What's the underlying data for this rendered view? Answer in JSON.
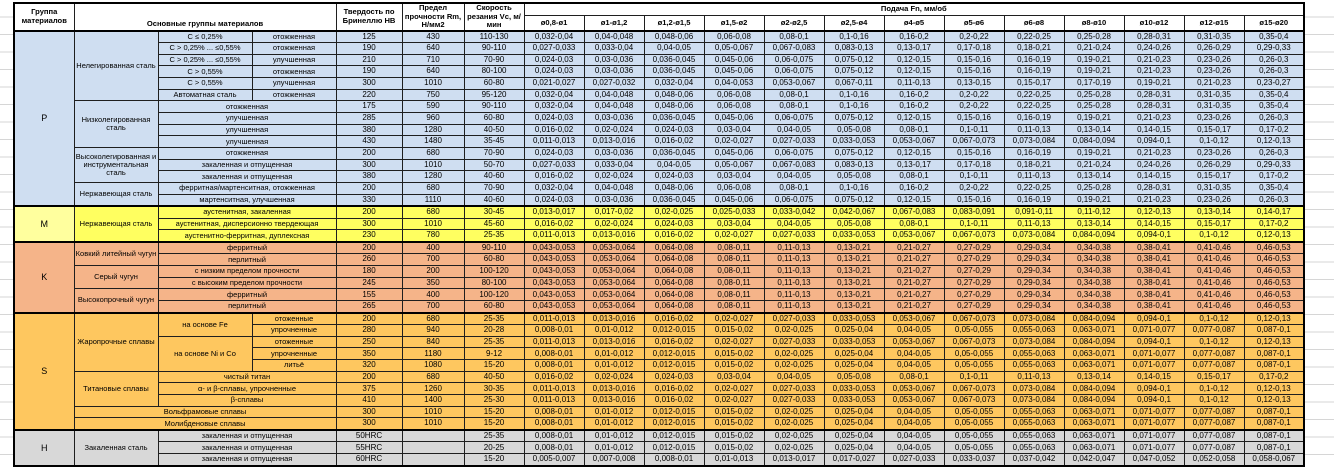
{
  "colors": {
    "group_P": "#cfdef1",
    "group_M": "#ffff60",
    "group_M_label": "#ffff9e",
    "group_K": "#f5b489",
    "group_S": "#fec75f",
    "group_H": "#d8d8d8",
    "border": "#1f1f1f"
  },
  "table": {
    "headers": {
      "group": "Группа материалов",
      "main": "Основные группы материалов",
      "hb": "Твердость по Бринеллю HB",
      "rm": "Предел прочности Rm, Н/мм2",
      "vc": "Скорость резания Vc, м/мин",
      "feed": "Подача Fn, мм/об"
    },
    "feed_cols": [
      "ø0,8-ø1",
      "ø1-ø1,2",
      "ø1,2-ø1,5",
      "ø1,5-ø2",
      "ø2-ø2,5",
      "ø2,5-ø4",
      "ø4-ø5",
      "ø5-ø6",
      "ø6-ø8",
      "ø8-ø10",
      "ø10-ø12",
      "ø12-ø15",
      "ø15-ø20"
    ],
    "feed_sets": {
      "F_A": [
        "0,032-0,04",
        "0,04-0,048",
        "0,048-0,06",
        "0,06-0,08",
        "0,08-0,1",
        "0,1-0,16",
        "0,16-0,2",
        "0,2-0,22",
        "0,22-0,25",
        "0,25-0,28",
        "0,28-0,31",
        "0,31-0,35",
        "0,35-0,4"
      ],
      "F_B": [
        "0,027-0,033",
        "0,033-0,04",
        "0,04-0,05",
        "0,05-0,067",
        "0,067-0,083",
        "0,083-0,13",
        "0,13-0,17",
        "0,17-0,18",
        "0,18-0,21",
        "0,21-0,24",
        "0,24-0,26",
        "0,26-0,29",
        "0,29-0,33"
      ],
      "F_C": [
        "0,024-0,03",
        "0,03-0,036",
        "0,036-0,045",
        "0,045-0,06",
        "0,06-0,075",
        "0,075-0,12",
        "0,12-0,15",
        "0,15-0,16",
        "0,16-0,19",
        "0,19-0,21",
        "0,21-0,23",
        "0,23-0,26",
        "0,26-0,3"
      ],
      "F_D": [
        "0,021-0,027",
        "0,027-0,032",
        "0,032-0,04",
        "0,04-0,053",
        "0,053-0,067",
        "0,067-0,11",
        "0,11-0,13",
        "0,13-0,15",
        "0,15-0,17",
        "0,17-0,19",
        "0,19-0,21",
        "0,21-0,23",
        "0,23-0,27"
      ],
      "F_E": [
        "0,016-0,02",
        "0,02-0,024",
        "0,024-0,03",
        "0,03-0,04",
        "0,04-0,05",
        "0,05-0,08",
        "0,08-0,1",
        "0,1-0,11",
        "0,11-0,13",
        "0,13-0,14",
        "0,14-0,15",
        "0,15-0,17",
        "0,17-0,2"
      ],
      "F_F": [
        "0,011-0,013",
        "0,013-0,016",
        "0,016-0,02",
        "0,02-0,027",
        "0,027-0,033",
        "0,033-0,053",
        "0,053-0,067",
        "0,067-0,073",
        "0,073-0,084",
        "0,084-0,094",
        "0,094-0,1",
        "0,1-0,12",
        "0,12-0,13"
      ],
      "F_G": [
        "0,013-0,017",
        "0,017-0,02",
        "0,02-0,025",
        "0,025-0,033",
        "0,033-0,042",
        "0,042-0,067",
        "0,067-0,083",
        "0,083-0,091",
        "0,091-0,11",
        "0,11-0,12",
        "0,12-0,13",
        "0,13-0,14",
        "0,14-0,17"
      ],
      "F_K": [
        "0,043-0,053",
        "0,053-0,064",
        "0,064-0,08",
        "0,08-0,11",
        "0,11-0,13",
        "0,13-0,21",
        "0,21-0,27",
        "0,27-0,29",
        "0,29-0,34",
        "0,34-0,38",
        "0,38-0,41",
        "0,41-0,46",
        "0,46-0,53"
      ],
      "F_H": [
        "0,008-0,01",
        "0,01-0,012",
        "0,012-0,015",
        "0,015-0,02",
        "0,02-0,025",
        "0,025-0,04",
        "0,04-0,05",
        "0,05-0,055",
        "0,055-0,063",
        "0,063-0,071",
        "0,071-0,077",
        "0,077-0,087",
        "0,087-0,1"
      ],
      "F_I": [
        "0,005-0,007",
        "0,007-0,008",
        "0,008-0,01",
        "0,01-0,013",
        "0,013-0,017",
        "0,017-0,027",
        "0,027-0,033",
        "0,033-0,037",
        "0,037-0,042",
        "0,042-0,047",
        "0,047-0,052",
        "0,052-0,058",
        "0,058-0,067"
      ]
    },
    "groups": [
      {
        "label": "P",
        "css": "gP",
        "label_css": "gP",
        "rows": [
          {
            "cells": [
              {
                "t": "Нелегированная сталь",
                "rs": 6
              },
              {
                "t": "C ≤ 0,25%"
              },
              {
                "t": "отожженная"
              }
            ],
            "hb": "125",
            "rm": "430",
            "vc": "110-130",
            "feeds": "F_A"
          },
          {
            "cells": [
              {
                "t": "C > 0,25% ... ≤0,55%"
              },
              {
                "t": "отожженная"
              }
            ],
            "hb": "190",
            "rm": "640",
            "vc": "90-110",
            "feeds": "F_B"
          },
          {
            "cells": [
              {
                "t": "C > 0,25% ... ≤0,55%"
              },
              {
                "t": "улучшенная"
              }
            ],
            "hb": "210",
            "rm": "710",
            "vc": "70-90",
            "feeds": "F_C"
          },
          {
            "cells": [
              {
                "t": "C > 0,55%"
              },
              {
                "t": "отожженная"
              }
            ],
            "hb": "190",
            "rm": "640",
            "vc": "80-100",
            "feeds": "F_C"
          },
          {
            "cells": [
              {
                "t": "C > 0,55%"
              },
              {
                "t": "улучшенная"
              }
            ],
            "hb": "300",
            "rm": "1010",
            "vc": "60-80",
            "feeds": "F_D"
          },
          {
            "cells": [
              {
                "t": "Автоматная сталь"
              },
              {
                "t": "отожженная"
              }
            ],
            "hb": "220",
            "rm": "750",
            "vc": "95-120",
            "feeds": "F_A"
          },
          {
            "cells": [
              {
                "t": "Низколегированная сталь",
                "rs": 4
              },
              {
                "t": "отожженная",
                "cs": 2
              }
            ],
            "hb": "175",
            "rm": "590",
            "vc": "90-110",
            "feeds": "F_A"
          },
          {
            "cells": [
              {
                "t": "улучшенная",
                "cs": 2
              }
            ],
            "hb": "285",
            "rm": "960",
            "vc": "60-80",
            "feeds": "F_C"
          },
          {
            "cells": [
              {
                "t": "улучшенная",
                "cs": 2
              }
            ],
            "hb": "380",
            "rm": "1280",
            "vc": "40-50",
            "feeds": "F_E"
          },
          {
            "cells": [
              {
                "t": "улучшенная",
                "cs": 2
              }
            ],
            "hb": "430",
            "rm": "1480",
            "vc": "35-45",
            "feeds": "F_F"
          },
          {
            "cells": [
              {
                "t": "Высоколегированная и инструментальная сталь",
                "rs": 3
              },
              {
                "t": "отожженная",
                "cs": 2
              }
            ],
            "hb": "200",
            "rm": "680",
            "vc": "70-90",
            "feeds": "F_C"
          },
          {
            "cells": [
              {
                "t": "закаленная и отпущенная",
                "cs": 2
              }
            ],
            "hb": "300",
            "rm": "1010",
            "vc": "50-70",
            "feeds": "F_B"
          },
          {
            "cells": [
              {
                "t": "закаленная и отпущенная",
                "cs": 2
              }
            ],
            "hb": "380",
            "rm": "1280",
            "vc": "40-60",
            "feeds": "F_E"
          },
          {
            "cells": [
              {
                "t": "Нержавеющая сталь",
                "rs": 2
              },
              {
                "t": "ферритная/мартенситная, отожженная",
                "cs": 2
              }
            ],
            "hb": "200",
            "rm": "680",
            "vc": "70-90",
            "feeds": "F_A"
          },
          {
            "cells": [
              {
                "t": "мартенситная, улучшенная",
                "cs": 2
              }
            ],
            "hb": "330",
            "rm": "1110",
            "vc": "40-60",
            "feeds": "F_C"
          }
        ]
      },
      {
        "label": "M",
        "css": "gM",
        "label_css": "gM-label",
        "rows": [
          {
            "cells": [
              {
                "t": "Нержавеющая сталь",
                "rs": 3
              },
              {
                "t": "аустенитная, закаленная",
                "cs": 2
              }
            ],
            "hb": "200",
            "rm": "680",
            "vc": "30-45",
            "feeds": "F_G"
          },
          {
            "cells": [
              {
                "t": "аустенитная, дисперсионно твердеющая",
                "cs": 2
              }
            ],
            "hb": "300",
            "rm": "1010",
            "vc": "45-60",
            "feeds": "F_E"
          },
          {
            "cells": [
              {
                "t": "аустенитно-ферритная, дуплексная",
                "cs": 2
              }
            ],
            "hb": "230",
            "rm": "780",
            "vc": "25-35",
            "feeds": "F_F"
          }
        ]
      },
      {
        "label": "K",
        "css": "gK",
        "label_css": "gK",
        "rows": [
          {
            "cells": [
              {
                "t": "Ковкий литейный чугун",
                "rs": 2
              },
              {
                "t": "ферритный",
                "cs": 2
              }
            ],
            "hb": "200",
            "rm": "400",
            "vc": "90-110",
            "feeds": "F_K"
          },
          {
            "cells": [
              {
                "t": "перлитный",
                "cs": 2
              }
            ],
            "hb": "260",
            "rm": "700",
            "vc": "60-80",
            "feeds": "F_K"
          },
          {
            "cells": [
              {
                "t": "Серый чугун",
                "rs": 2
              },
              {
                "t": "с низким пределом прочности",
                "cs": 2
              }
            ],
            "hb": "180",
            "rm": "200",
            "vc": "100-120",
            "feeds": "F_K"
          },
          {
            "cells": [
              {
                "t": "с высоким пределом прочности",
                "cs": 2
              }
            ],
            "hb": "245",
            "rm": "350",
            "vc": "80-100",
            "feeds": "F_K"
          },
          {
            "cells": [
              {
                "t": "Высокопрочный чугун",
                "rs": 2
              },
              {
                "t": "ферритный",
                "cs": 2
              }
            ],
            "hb": "155",
            "rm": "400",
            "vc": "100-120",
            "feeds": "F_K"
          },
          {
            "cells": [
              {
                "t": "перлитный",
                "cs": 2
              }
            ],
            "hb": "265",
            "rm": "700",
            "vc": "60-80",
            "feeds": "F_K"
          }
        ]
      },
      {
        "label": "S",
        "css": "gS",
        "label_css": "gS",
        "rows": [
          {
            "cells": [
              {
                "t": "Жаропрочные сплавы",
                "rs": 5
              },
              {
                "t": "на основе Fe",
                "rs": 2
              },
              {
                "t": "отоженные"
              }
            ],
            "hb": "200",
            "rm": "680",
            "vc": "25-35",
            "feeds": "F_F"
          },
          {
            "cells": [
              {
                "t": "упрочненные"
              }
            ],
            "hb": "280",
            "rm": "940",
            "vc": "20-28",
            "feeds": "F_H"
          },
          {
            "cells": [
              {
                "t": "на основе Ni и Co",
                "rs": 3
              },
              {
                "t": "отоженные"
              }
            ],
            "hb": "250",
            "rm": "840",
            "vc": "25-35",
            "feeds": "F_F"
          },
          {
            "cells": [
              {
                "t": "упрочненные"
              }
            ],
            "hb": "350",
            "rm": "1180",
            "vc": "9-12",
            "feeds": "F_H"
          },
          {
            "cells": [
              {
                "t": "литьё"
              }
            ],
            "hb": "320",
            "rm": "1080",
            "vc": "15-20",
            "feeds": "F_H"
          },
          {
            "cells": [
              {
                "t": "Титановые сплавы",
                "rs": 3
              },
              {
                "t": "чистый титан",
                "cs": 2
              }
            ],
            "hb": "200",
            "rm": "680",
            "vc": "40-50",
            "feeds": "F_E"
          },
          {
            "cells": [
              {
                "t": "α- и β-сплавы, упрочненные",
                "cs": 2
              }
            ],
            "hb": "375",
            "rm": "1260",
            "vc": "30-35",
            "feeds": "F_F"
          },
          {
            "cells": [
              {
                "t": "β-сплавы",
                "cs": 2
              }
            ],
            "hb": "410",
            "rm": "1400",
            "vc": "25-30",
            "feeds": "F_F"
          },
          {
            "cells": [
              {
                "t": "Вольфрамовые сплавы",
                "cs": 3
              }
            ],
            "hb": "300",
            "rm": "1010",
            "vc": "15-20",
            "feeds": "F_H"
          },
          {
            "cells": [
              {
                "t": "Молибденовые сплавы",
                "cs": 3
              }
            ],
            "hb": "300",
            "rm": "1010",
            "vc": "15-20",
            "feeds": "F_H"
          }
        ]
      },
      {
        "label": "H",
        "css": "gH",
        "label_css": "gH",
        "rows": [
          {
            "cells": [
              {
                "t": "Закаленная сталь",
                "rs": 3
              },
              {
                "t": "закаленная и отпущенная",
                "cs": 2
              }
            ],
            "hb": "50HRC",
            "rm": "",
            "vc": "25-35",
            "feeds": "F_H"
          },
          {
            "cells": [
              {
                "t": "закаленная и отпущенная",
                "cs": 2
              }
            ],
            "hb": "55HRC",
            "rm": "",
            "vc": "20-25",
            "feeds": "F_H"
          },
          {
            "cells": [
              {
                "t": "закаленная и отпущенная",
                "cs": 2
              }
            ],
            "hb": "60HRC",
            "rm": "",
            "vc": "15-20",
            "feeds": "F_I"
          }
        ]
      }
    ]
  }
}
